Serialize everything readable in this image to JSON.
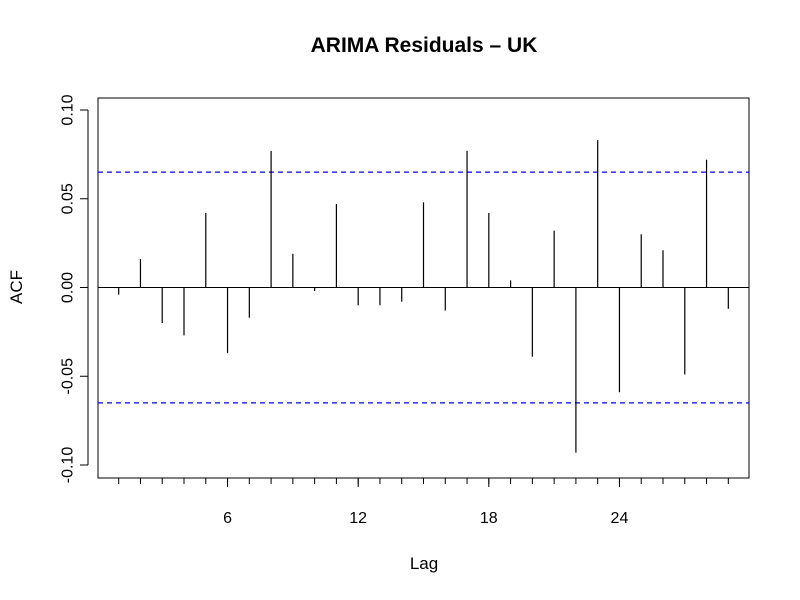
{
  "chart_data": {
    "type": "bar",
    "title": "ARIMA Residuals – UK",
    "xlabel": "Lag",
    "ylabel": "ACF",
    "xlim": [
      0.05,
      29.95
    ],
    "ylim": [
      -0.1,
      0.1
    ],
    "x_ticks": [
      6,
      12,
      18,
      24
    ],
    "x_minor_ticks": [
      1,
      2,
      3,
      4,
      5,
      6,
      7,
      8,
      9,
      10,
      11,
      12,
      13,
      14,
      15,
      16,
      17,
      18,
      19,
      20,
      21,
      22,
      23,
      24,
      25,
      26,
      27,
      28,
      29
    ],
    "x_tick_labels": [
      "6",
      "12",
      "18",
      "24"
    ],
    "y_ticks": [
      -0.1,
      -0.05,
      0.0,
      0.05,
      0.1
    ],
    "y_tick_labels": [
      "-0.10",
      "-0.05",
      "0.00",
      "0.05",
      "0.10"
    ],
    "ci_bound": 0.065,
    "ci_color": "#0000ff",
    "bar_color": "#000000",
    "grid": false,
    "legend": "none",
    "lags": [
      1,
      2,
      3,
      4,
      5,
      6,
      7,
      8,
      9,
      10,
      11,
      12,
      13,
      14,
      15,
      16,
      17,
      18,
      19,
      20,
      21,
      22,
      23,
      24,
      25,
      26,
      27,
      28,
      29
    ],
    "values": [
      -0.004,
      0.016,
      -0.02,
      -0.027,
      0.042,
      -0.037,
      -0.017,
      0.077,
      0.019,
      -0.002,
      0.047,
      -0.01,
      -0.01,
      -0.008,
      0.048,
      -0.013,
      0.077,
      0.042,
      0.004,
      -0.039,
      0.032,
      -0.093,
      0.083,
      -0.059,
      0.03,
      0.021,
      -0.049,
      0.072,
      -0.012
    ]
  }
}
